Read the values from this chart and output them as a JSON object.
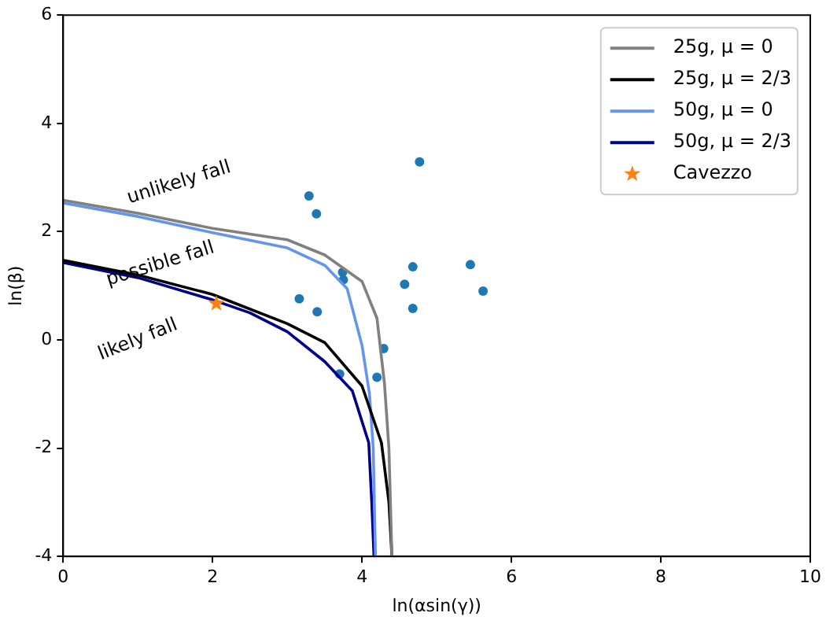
{
  "chart_data": {
    "type": "line",
    "xlabel": "ln(αsin(γ))",
    "ylabel": "ln(β)",
    "xlim": [
      0,
      10
    ],
    "ylim": [
      -4,
      6
    ],
    "xticks": [
      0,
      2,
      4,
      6,
      8,
      10
    ],
    "yticks": [
      -4,
      -2,
      0,
      2,
      4,
      6
    ],
    "grid": false,
    "legend": "top right",
    "marker": "none",
    "line_style": "solid",
    "series": [
      {
        "name": "25g, μ = 0",
        "color": "#808080",
        "x": [
          0,
          1,
          2,
          3,
          3.5,
          4,
          4.2,
          4.3,
          4.36,
          4.4
        ],
        "values": [
          2.58,
          2.34,
          2.06,
          1.85,
          1.57,
          1.08,
          0.4,
          -0.8,
          -2,
          -4
        ]
      },
      {
        "name": "25g, μ = 2/3",
        "color": "#000000",
        "x": [
          0,
          1,
          2,
          3,
          3.5,
          4,
          4.26,
          4.36,
          4.4
        ],
        "values": [
          1.47,
          1.2,
          0.84,
          0.3,
          -0.05,
          -0.85,
          -1.9,
          -3,
          -4
        ]
      },
      {
        "name": "50g, μ = 0",
        "color": "#6495ed",
        "x": [
          0,
          1,
          2,
          3,
          3.5,
          3.8,
          4,
          4.1,
          4.15,
          4.18
        ],
        "values": [
          2.53,
          2.28,
          1.98,
          1.7,
          1.38,
          0.95,
          -0.1,
          -1,
          -2,
          -4
        ]
      },
      {
        "name": "50g, μ = 2/3",
        "color": "#00008b",
        "x": [
          0,
          1,
          2,
          2.5,
          3,
          3.5,
          3.87,
          4.09,
          4.13,
          4.16
        ],
        "values": [
          1.43,
          1.15,
          0.74,
          0.5,
          0.15,
          -0.4,
          -0.94,
          -1.9,
          -3,
          -4
        ]
      },
      {
        "color": "#1f77b4",
        "type": "scatter",
        "marker": "circle",
        "x": [
          3.29,
          3.39,
          4.77,
          3.74,
          3.75,
          4.68,
          4.57,
          4.68,
          3.16,
          3.4,
          4.29,
          3.7,
          4.2,
          5.45,
          5.62
        ],
        "values": [
          2.66,
          2.33,
          3.29,
          1.25,
          1.11,
          1.35,
          1.03,
          0.58,
          0.76,
          0.52,
          -0.16,
          -0.63,
          -0.69,
          1.39,
          0.9
        ]
      },
      {
        "name": "Cavezzo",
        "color": "#ff7f0e",
        "type": "scatter",
        "marker": "star",
        "x": [
          2.05
        ],
        "values": [
          0.67
        ]
      }
    ],
    "annotations": [
      "unlikely fall",
      "possible fall",
      "likely fall"
    ]
  }
}
